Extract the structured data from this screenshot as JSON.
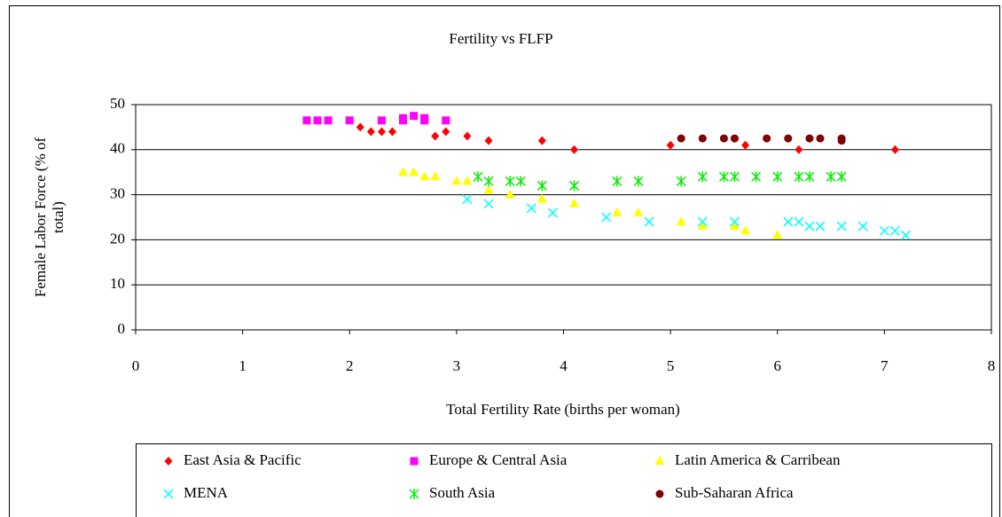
{
  "chart_data": {
    "type": "scatter",
    "title": "Fertility vs FLFP",
    "xlabel": "Total Fertility Rate (births per woman)",
    "ylabel": [
      "Female Labor Force (% of",
      "total)"
    ],
    "xlim": [
      0,
      8
    ],
    "xticks": [
      0,
      1,
      2,
      3,
      4,
      5,
      6,
      7,
      8
    ],
    "ylim": [
      0,
      50
    ],
    "yticks": [
      0,
      10,
      20,
      30,
      40,
      50
    ],
    "grid": true,
    "legend": "bottom",
    "series": [
      {
        "name": "East Asia & Pacific",
        "color": "#ff0000",
        "marker": "diamond",
        "x": [
          2.1,
          2.2,
          2.3,
          2.4,
          2.8,
          2.9,
          3.1,
          3.3,
          3.8,
          4.1,
          5.0,
          5.7,
          6.2,
          7.1
        ],
        "values": [
          45,
          44,
          44,
          44,
          43,
          44,
          43,
          42,
          42,
          40,
          41,
          41,
          40,
          40
        ]
      },
      {
        "name": "Europe & Central Asia",
        "color": "#ff00ff",
        "marker": "square",
        "x": [
          1.6,
          1.7,
          1.8,
          2.0,
          2.3,
          2.5,
          2.5,
          2.6,
          2.7,
          2.7,
          2.9
        ],
        "values": [
          46.5,
          46.5,
          46.5,
          46.5,
          46.5,
          46.5,
          47,
          47.5,
          47,
          46.5,
          46.5
        ]
      },
      {
        "name": "Latin America & Carribean",
        "color": "#ffff00",
        "marker": "triangle",
        "x": [
          2.5,
          2.6,
          2.7,
          2.8,
          3.0,
          3.1,
          3.3,
          3.5,
          3.8,
          4.1,
          4.5,
          4.7,
          5.1,
          5.3,
          5.6,
          5.7,
          6.0
        ],
        "values": [
          35,
          35,
          34,
          34,
          33,
          33,
          31,
          30,
          29,
          28,
          26,
          26,
          24,
          23,
          23,
          22,
          21
        ]
      },
      {
        "name": "MENA",
        "color": "#00ffff",
        "marker": "x",
        "x": [
          3.1,
          3.3,
          3.7,
          3.9,
          4.4,
          4.8,
          5.3,
          5.6,
          6.1,
          6.2,
          6.3,
          6.4,
          6.6,
          6.8,
          7.0,
          7.1,
          7.2
        ],
        "values": [
          29,
          28,
          27,
          26,
          25,
          24,
          24,
          24,
          24,
          24,
          23,
          23,
          23,
          23,
          22,
          22,
          21
        ]
      },
      {
        "name": "South Asia",
        "color": "#00ee00",
        "marker": "asterisk",
        "x": [
          3.2,
          3.3,
          3.5,
          3.6,
          3.8,
          4.1,
          4.5,
          4.7,
          5.1,
          5.3,
          5.5,
          5.6,
          5.8,
          6.0,
          6.2,
          6.3,
          6.5,
          6.6
        ],
        "values": [
          34,
          33,
          33,
          33,
          32,
          32,
          33,
          33,
          33,
          34,
          34,
          34,
          34,
          34,
          34,
          34,
          34,
          34
        ]
      },
      {
        "name": "Sub-Saharan Africa",
        "color": "#800000",
        "marker": "circle",
        "x": [
          5.1,
          5.3,
          5.5,
          5.6,
          5.9,
          6.1,
          6.3,
          6.4,
          6.6,
          6.6
        ],
        "values": [
          42.5,
          42.5,
          42.5,
          42.5,
          42.5,
          42.5,
          42.5,
          42.5,
          42.5,
          42
        ]
      }
    ]
  }
}
